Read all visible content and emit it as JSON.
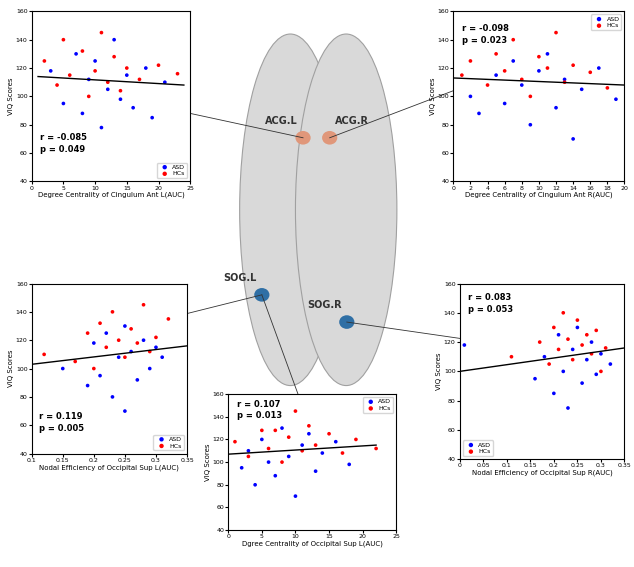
{
  "chart_data": [
    {
      "type": "scatter",
      "x_label": "Degree Centrality of Cingulum Ant L(AUC)",
      "y_label": "VIQ Scores",
      "xlim": [
        0,
        25
      ],
      "ylim": [
        40,
        160
      ],
      "xticks": [
        0,
        5,
        10,
        15,
        20,
        25
      ],
      "yticks": [
        40,
        60,
        80,
        100,
        120,
        140,
        160
      ],
      "legend": "lower right",
      "annotations": [
        "r = -0.085",
        "p = 0.049"
      ],
      "series": [
        {
          "name": "ASD",
          "color": "#0000ff",
          "marker": "circle",
          "x": [
            3,
            5,
            7,
            8,
            9,
            10,
            11,
            12,
            13,
            14,
            15,
            16,
            18,
            19,
            21
          ],
          "values": [
            118,
            95,
            130,
            88,
            112,
            125,
            78,
            105,
            140,
            98,
            115,
            92,
            120,
            85,
            110
          ]
        },
        {
          "name": "HCs",
          "color": "#ff0000",
          "marker": "circle",
          "x": [
            2,
            4,
            5,
            6,
            8,
            9,
            10,
            11,
            12,
            13,
            14,
            15,
            17,
            20,
            23
          ],
          "values": [
            125,
            108,
            140,
            115,
            132,
            100,
            118,
            145,
            110,
            128,
            104,
            120,
            112,
            122,
            116
          ]
        }
      ],
      "fit_line": {
        "type": "line",
        "color": "#000000",
        "x": [
          1,
          24
        ],
        "values": [
          114,
          108
        ]
      }
    },
    {
      "type": "scatter",
      "x_label": "Degree Centrality of Cingulum Ant R(AUC)",
      "y_label": "VIQ Scores",
      "xlim": [
        0,
        20
      ],
      "ylim": [
        40,
        160
      ],
      "xticks": [
        0,
        2,
        4,
        6,
        8,
        10,
        12,
        14,
        16,
        18,
        20
      ],
      "yticks": [
        40,
        60,
        80,
        100,
        120,
        140,
        160
      ],
      "legend": "upper right",
      "annotations": [
        "r = -0.098",
        "p = 0.023"
      ],
      "series": [
        {
          "name": "ASD",
          "color": "#0000ff",
          "marker": "circle",
          "x": [
            2,
            3,
            5,
            6,
            7,
            8,
            9,
            10,
            11,
            12,
            13,
            14,
            15,
            17,
            19
          ],
          "values": [
            100,
            88,
            115,
            95,
            125,
            108,
            80,
            118,
            130,
            92,
            112,
            70,
            105,
            120,
            98
          ]
        },
        {
          "name": "HCs",
          "color": "#ff0000",
          "marker": "circle",
          "x": [
            1,
            2,
            4,
            5,
            6,
            7,
            8,
            9,
            10,
            11,
            12,
            13,
            14,
            16,
            18
          ],
          "values": [
            115,
            125,
            108,
            130,
            118,
            140,
            112,
            100,
            128,
            120,
            145,
            110,
            122,
            117,
            106
          ]
        }
      ],
      "fit_line": {
        "type": "line",
        "color": "#000000",
        "x": [
          0,
          20
        ],
        "values": [
          113,
          108
        ]
      }
    },
    {
      "type": "scatter",
      "x_label": "Nodal Efficiency of Occipital Sup L(AUC)",
      "y_label": "VIQ Scores",
      "xlim": [
        0.1,
        0.35
      ],
      "ylim": [
        40,
        160
      ],
      "xticks": [
        0.1,
        0.15,
        0.2,
        0.25,
        0.3,
        0.35
      ],
      "yticks": [
        40,
        60,
        80,
        100,
        120,
        140,
        160
      ],
      "legend": "lower right",
      "annotations": [
        "r = 0.119",
        "p = 0.005"
      ],
      "series": [
        {
          "name": "ASD",
          "color": "#0000ff",
          "marker": "circle",
          "x": [
            0.15,
            0.19,
            0.2,
            0.21,
            0.22,
            0.23,
            0.24,
            0.25,
            0.25,
            0.26,
            0.27,
            0.28,
            0.29,
            0.3,
            0.31
          ],
          "values": [
            100,
            88,
            118,
            95,
            125,
            80,
            108,
            130,
            70,
            112,
            92,
            120,
            100,
            115,
            108
          ]
        },
        {
          "name": "HCs",
          "color": "#ff0000",
          "marker": "circle",
          "x": [
            0.12,
            0.17,
            0.19,
            0.2,
            0.21,
            0.22,
            0.23,
            0.24,
            0.25,
            0.26,
            0.27,
            0.28,
            0.29,
            0.3,
            0.32
          ],
          "values": [
            110,
            105,
            125,
            100,
            132,
            115,
            140,
            120,
            108,
            128,
            118,
            145,
            112,
            122,
            135
          ]
        }
      ],
      "fit_line": {
        "type": "line",
        "color": "#000000",
        "x": [
          0.1,
          0.35
        ],
        "values": [
          103,
          116
        ]
      }
    },
    {
      "type": "scatter",
      "x_label": "Nodal Efficiency of Occipital Sup R(AUC)",
      "y_label": "VIQ Scores",
      "xlim": [
        0,
        0.35
      ],
      "ylim": [
        40,
        160
      ],
      "xticks": [
        0,
        0.05,
        0.1,
        0.15,
        0.2,
        0.25,
        0.3,
        0.35
      ],
      "yticks": [
        40,
        60,
        80,
        100,
        120,
        140,
        160
      ],
      "legend": "lower left",
      "annotations": [
        "r = 0.083",
        "p = 0.053"
      ],
      "series": [
        {
          "name": "ASD",
          "color": "#0000ff",
          "marker": "circle",
          "x": [
            0.01,
            0.16,
            0.18,
            0.2,
            0.21,
            0.22,
            0.23,
            0.24,
            0.25,
            0.26,
            0.27,
            0.28,
            0.29,
            0.3,
            0.32
          ],
          "values": [
            118,
            95,
            110,
            85,
            125,
            100,
            75,
            115,
            130,
            92,
            108,
            120,
            98,
            112,
            105
          ]
        },
        {
          "name": "HCs",
          "color": "#ff0000",
          "marker": "circle",
          "x": [
            0.11,
            0.17,
            0.19,
            0.2,
            0.21,
            0.22,
            0.23,
            0.24,
            0.25,
            0.26,
            0.27,
            0.28,
            0.29,
            0.3,
            0.31
          ],
          "values": [
            110,
            120,
            105,
            130,
            115,
            140,
            122,
            108,
            135,
            118,
            125,
            112,
            128,
            100,
            116
          ]
        }
      ],
      "fit_line": {
        "type": "line",
        "color": "#000000",
        "x": [
          0,
          0.35
        ],
        "values": [
          100,
          116
        ]
      }
    },
    {
      "type": "scatter",
      "x_label": "Dgree Centrality of Occipital Sup L(AUC)",
      "y_label": "VIQ Scores",
      "xlim": [
        0,
        25
      ],
      "ylim": [
        40,
        160
      ],
      "xticks": [
        0,
        5,
        10,
        15,
        20,
        25
      ],
      "yticks": [
        40,
        60,
        80,
        100,
        120,
        140,
        160
      ],
      "legend": "upper right",
      "annotations": [
        "r = 0.107",
        "p = 0.013"
      ],
      "series": [
        {
          "name": "ASD",
          "color": "#0000ff",
          "marker": "circle",
          "x": [
            2,
            3,
            4,
            5,
            6,
            7,
            8,
            9,
            10,
            11,
            12,
            13,
            14,
            16,
            18
          ],
          "values": [
            95,
            110,
            80,
            120,
            100,
            88,
            130,
            105,
            70,
            115,
            125,
            92,
            108,
            118,
            98
          ]
        },
        {
          "name": "HCs",
          "color": "#ff0000",
          "marker": "circle",
          "x": [
            1,
            3,
            5,
            6,
            7,
            8,
            9,
            10,
            11,
            12,
            13,
            15,
            17,
            19,
            22
          ],
          "values": [
            118,
            105,
            128,
            112,
            128,
            100,
            122,
            145,
            110,
            132,
            115,
            125,
            108,
            120,
            112
          ]
        }
      ],
      "fit_line": {
        "type": "line",
        "color": "#000000",
        "x": [
          0,
          22
        ],
        "values": [
          107,
          115
        ]
      }
    }
  ],
  "nodes": [
    {
      "label": "ACG.L",
      "color": "#e0977a"
    },
    {
      "label": "ACG.R",
      "color": "#e0977a"
    },
    {
      "label": "SOG.L",
      "color": "#2f6fa5"
    },
    {
      "label": "SOG.R",
      "color": "#2f6fa5"
    }
  ]
}
